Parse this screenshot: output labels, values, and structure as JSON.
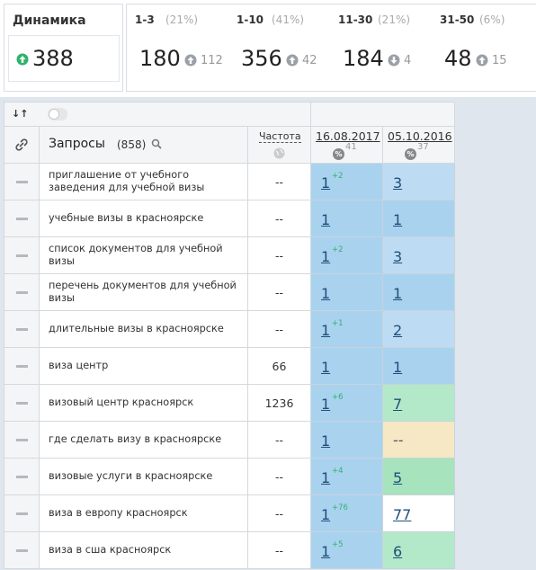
{
  "header": {
    "dynamics": {
      "label": "Динамика",
      "value": 388,
      "direction": "up"
    },
    "ranges": [
      {
        "label": "1-3",
        "percent": "(21%)",
        "value": 180,
        "change": 112,
        "direction": "up"
      },
      {
        "label": "1-10",
        "percent": "(41%)",
        "value": 356,
        "change": 42,
        "direction": "up"
      },
      {
        "label": "11-30",
        "percent": "(21%)",
        "value": 184,
        "change": 4,
        "direction": "down"
      },
      {
        "label": "31-50",
        "percent": "(6%)",
        "value": 48,
        "change": 15,
        "direction": "up"
      }
    ]
  },
  "table": {
    "queries_label": "Запросы",
    "queries_count": "(858)",
    "frequency_label": "Частота",
    "dates": [
      {
        "date": "16.08.2017",
        "count": 41
      },
      {
        "date": "05.10.2016",
        "count": 37
      }
    ],
    "rows": [
      {
        "query": "приглашение от учебного заведения для учебной визы",
        "frequency": "--",
        "positions": [
          {
            "value": 1,
            "delta": "+2",
            "color": "#a9d2ef"
          },
          {
            "value": 3,
            "color": "#bddcf3"
          }
        ]
      },
      {
        "query": "учебные визы в красноярске",
        "frequency": "--",
        "positions": [
          {
            "value": 1,
            "color": "#a9d2ef"
          },
          {
            "value": 1,
            "color": "#a9d2ef"
          }
        ]
      },
      {
        "query": "список документов для учебной визы",
        "frequency": "--",
        "positions": [
          {
            "value": 1,
            "delta": "+2",
            "color": "#a9d2ef"
          },
          {
            "value": 3,
            "color": "#bddcf3"
          }
        ]
      },
      {
        "query": "перечень документов для учебной визы",
        "frequency": "--",
        "positions": [
          {
            "value": 1,
            "color": "#a9d2ef"
          },
          {
            "value": 1,
            "color": "#a9d2ef"
          }
        ]
      },
      {
        "query": "длительные визы в красноярске",
        "frequency": "--",
        "positions": [
          {
            "value": 1,
            "delta": "+1",
            "color": "#a9d2ef"
          },
          {
            "value": 2,
            "color": "#bddcf3"
          }
        ]
      },
      {
        "query": "виза центр",
        "frequency": 66,
        "positions": [
          {
            "value": 1,
            "color": "#a9d2ef"
          },
          {
            "value": 1,
            "color": "#a9d2ef"
          }
        ]
      },
      {
        "query": "визовый центр красноярск",
        "frequency": 1236,
        "positions": [
          {
            "value": 1,
            "delta": "+6",
            "color": "#a9d2ef"
          },
          {
            "value": 7,
            "color": "#b3e9c8"
          }
        ]
      },
      {
        "query": "где сделать визу в красноярске",
        "frequency": "--",
        "positions": [
          {
            "value": 1,
            "color": "#a9d2ef"
          },
          {
            "value": "--",
            "color": "#f6e7c5"
          }
        ]
      },
      {
        "query": "визовые услуги в красноярске",
        "frequency": "--",
        "positions": [
          {
            "value": 1,
            "delta": "+4",
            "color": "#a9d2ef"
          },
          {
            "value": 5,
            "color": "#a7e3bd"
          }
        ]
      },
      {
        "query": "виза в европу красноярск",
        "frequency": "--",
        "positions": [
          {
            "value": 1,
            "delta": "+76",
            "color": "#a9d2ef"
          },
          {
            "value": 77,
            "color": "#ffffff"
          }
        ]
      },
      {
        "query": "виза в сша красноярск",
        "frequency": "--",
        "positions": [
          {
            "value": 1,
            "delta": "+5",
            "color": "#a9d2ef"
          },
          {
            "value": 6,
            "color": "#b3e9c8"
          }
        ]
      }
    ]
  }
}
